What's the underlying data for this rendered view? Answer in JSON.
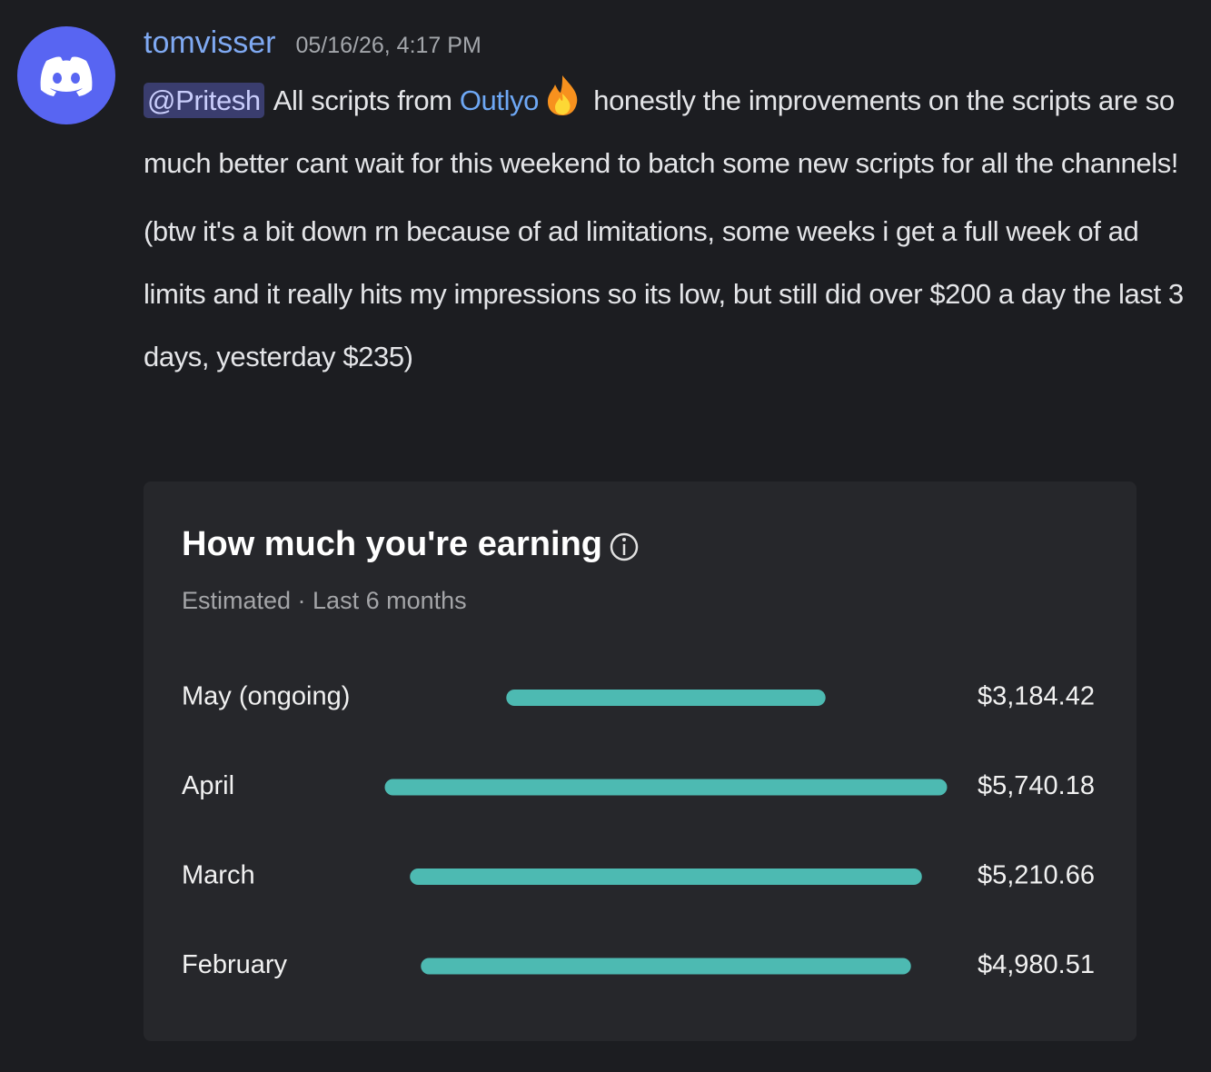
{
  "message": {
    "author": "tomvisser",
    "timestamp": "05/16/26, 4:17 PM",
    "mention": "@Pritesh",
    "text_before_link": "All scripts from",
    "link": "Outlyo",
    "text_after_link": "honestly the improvements on the scripts are so much better cant wait for this weekend to batch some new scripts for all the channels!",
    "text_second": "(btw it's a bit down rn because of ad limitations, some weeks i get a full week of ad limits and it really hits my impressions so its low, but still did over $200 a day the last 3 days, yesterday $235)"
  },
  "chart_data": {
    "type": "bar",
    "title": "How much you're earning",
    "subtitle": "Estimated · Last 6 months",
    "categories": [
      "May (ongoing)",
      "April",
      "March",
      "February"
    ],
    "values": [
      3184.42,
      5740.18,
      5210.66,
      4980.51
    ],
    "value_labels": [
      "$3,184.42",
      "$5,740.18",
      "$5,210.66",
      "$4,980.51"
    ],
    "color": "#4dbab2"
  }
}
